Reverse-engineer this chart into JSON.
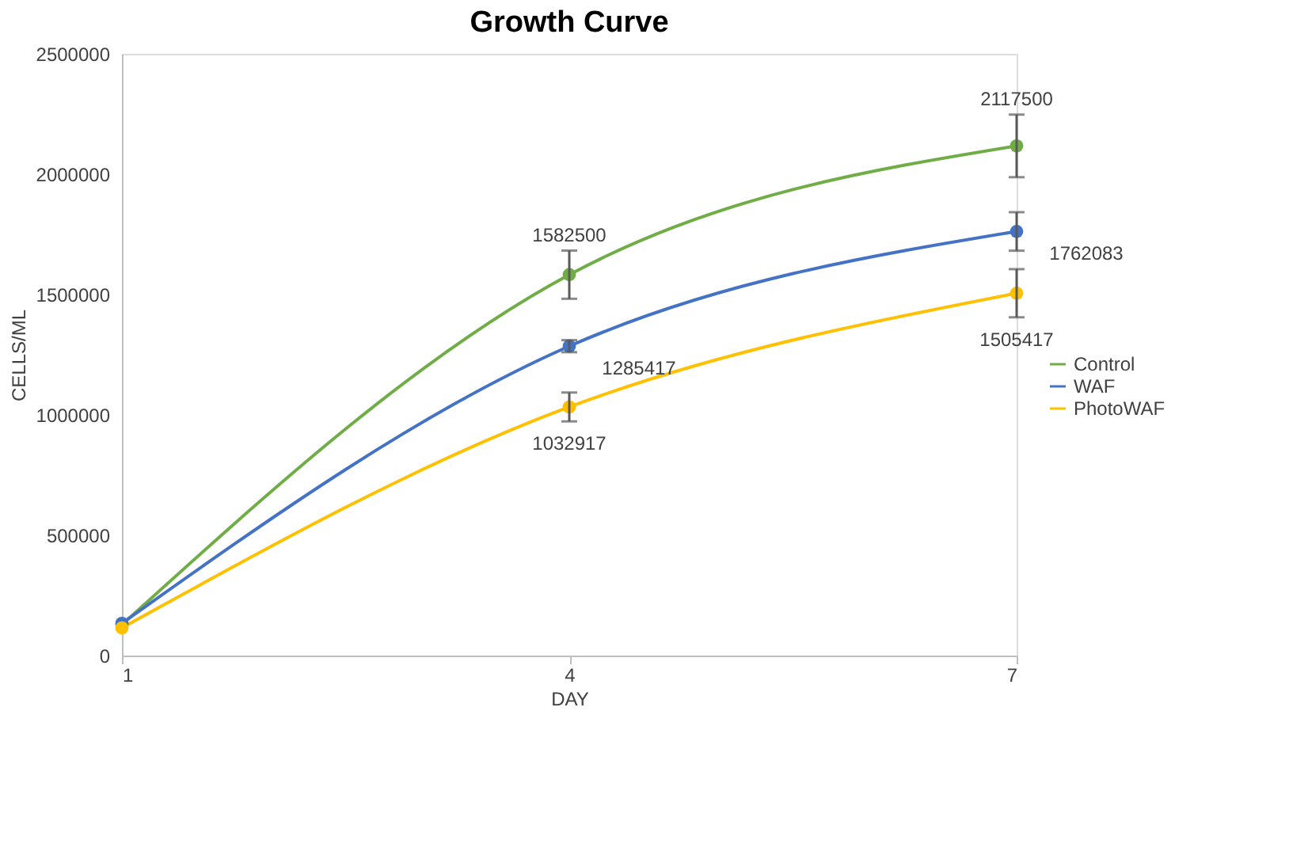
{
  "chart_data": {
    "type": "line",
    "title": "Growth Curve",
    "xlabel": "DAY",
    "ylabel": "CELLS/ML",
    "x": [
      1,
      4,
      7
    ],
    "xlim": [
      1,
      7
    ],
    "xticks": [
      1,
      4,
      7
    ],
    "ylim": [
      0,
      2500000
    ],
    "yticks": [
      0,
      500000,
      1000000,
      1500000,
      2000000,
      2500000
    ],
    "series": [
      {
        "name": "Control",
        "color": "#70ad47",
        "values": [
          128000,
          1582500,
          2117500
        ],
        "errors": [
          null,
          100000,
          130000
        ],
        "value_labels": [
          null,
          "1582500",
          "2117500"
        ]
      },
      {
        "name": "WAF",
        "color": "#4472c4",
        "values": [
          134000,
          1285417,
          1762083
        ],
        "errors": [
          null,
          25000,
          80000
        ],
        "value_labels": [
          null,
          "1285417",
          "1762083"
        ]
      },
      {
        "name": "PhotoWAF",
        "color": "#ffc000",
        "values": [
          115000,
          1032917,
          1505417
        ],
        "errors": [
          null,
          60000,
          100000
        ],
        "value_labels": [
          null,
          "1032917",
          "1505417"
        ]
      }
    ],
    "marker": "circle",
    "line_style": "solid",
    "grid": false,
    "legend": "right"
  }
}
